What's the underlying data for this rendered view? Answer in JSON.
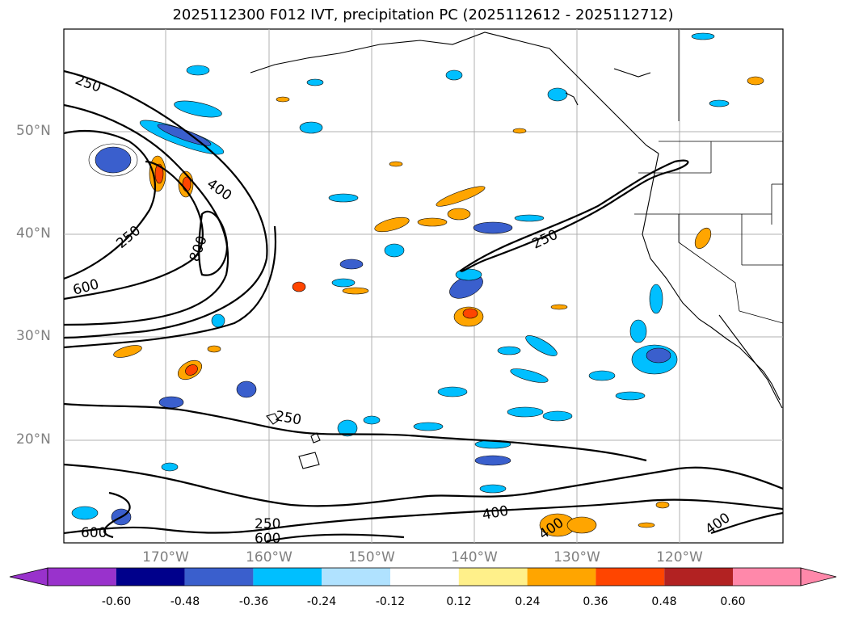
{
  "title": "2025112300 F012 IVT, precipitation PC (2025112612 - 2025112712)",
  "lat_labels": [
    "50°N",
    "40°N",
    "30°N",
    "20°N"
  ],
  "lon_labels": [
    "170°W",
    "160°W",
    "150°W",
    "140°W",
    "130°W",
    "120°W"
  ],
  "contour_labels": [
    "250",
    "400",
    "250",
    "800",
    "600",
    "250",
    "250",
    "400",
    "600",
    "600",
    "250",
    "400",
    "400"
  ],
  "colorbar": {
    "ticks": [
      "-0.60",
      "-0.48",
      "-0.36",
      "-0.24",
      "-0.12",
      "0.12",
      "0.24",
      "0.36",
      "0.48",
      "0.60"
    ],
    "colors": [
      "#9932cc",
      "#00008b",
      "#3a5fcd",
      "#00bfff",
      "#b0e2ff",
      "#ffffff",
      "#fff08a",
      "#ffa500",
      "#ff4500",
      "#b22222",
      "#ff88aa"
    ]
  }
}
